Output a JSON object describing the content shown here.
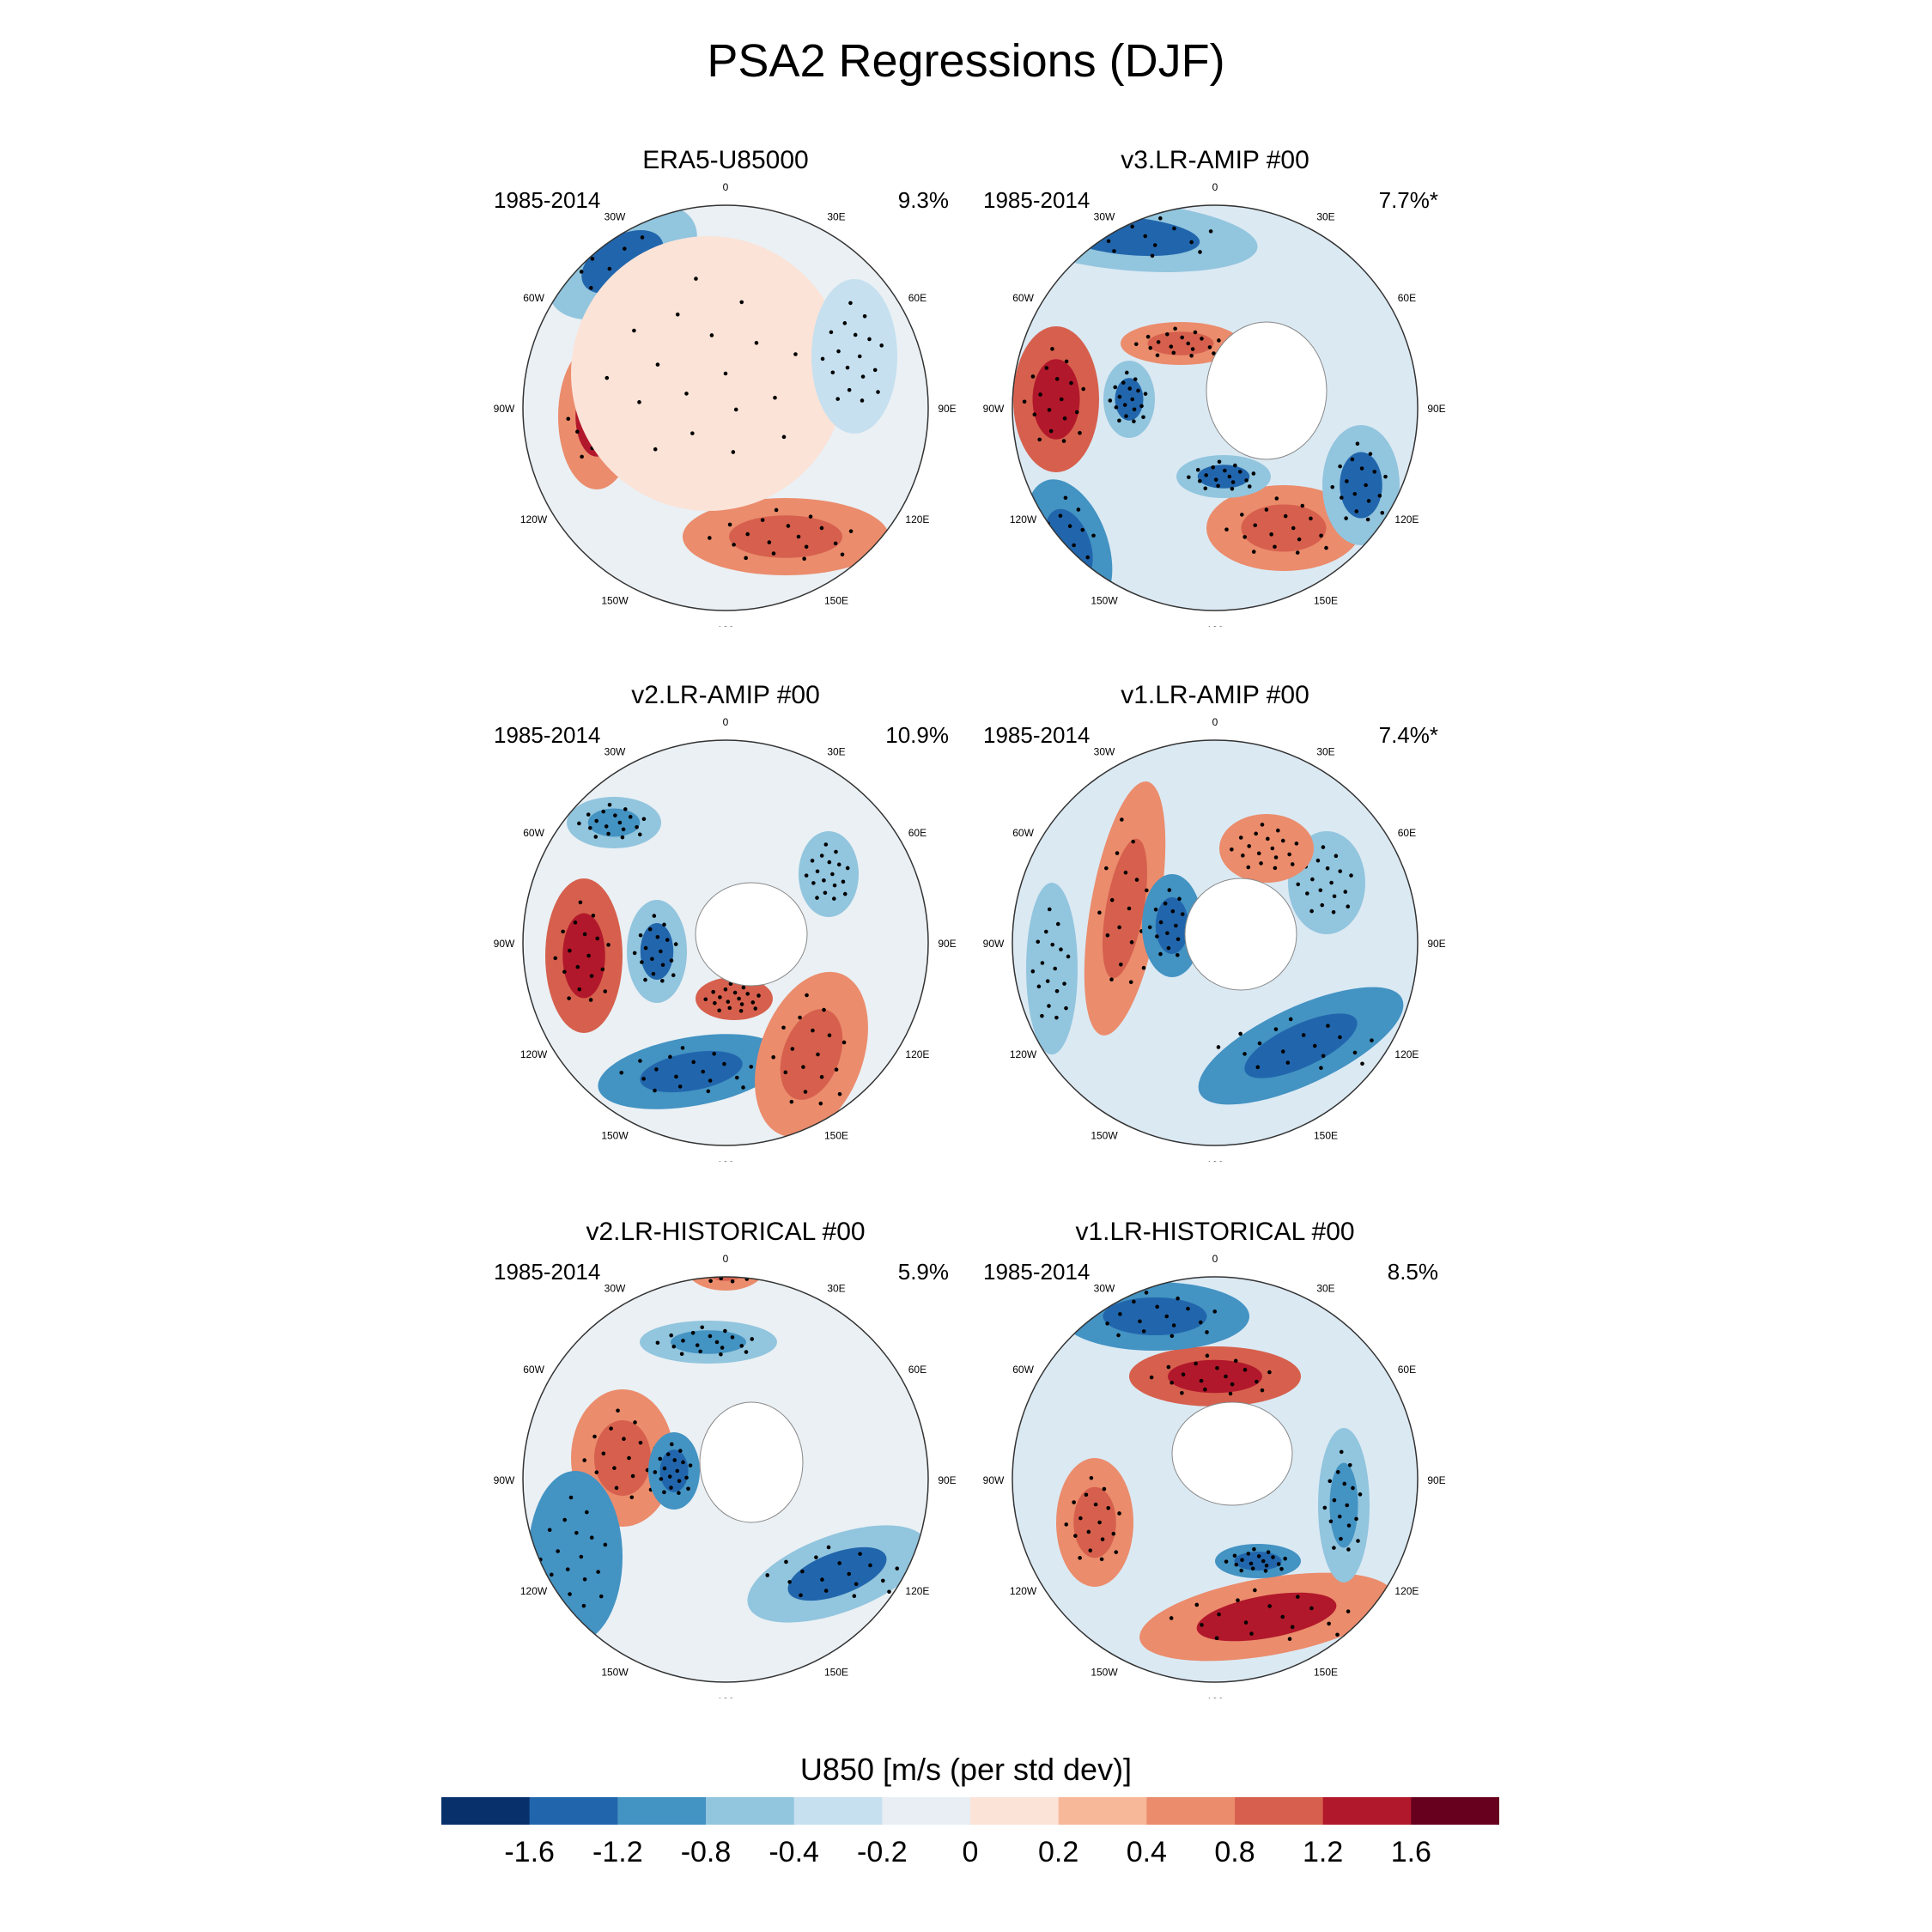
{
  "title": "PSA2 Regressions (DJF)",
  "panels": [
    {
      "name": "ERA5-U85000",
      "period": "1985-2014",
      "percent": "9.3%"
    },
    {
      "name": "v3.LR-AMIP  #00",
      "period": "1985-2014",
      "percent": "7.7%*"
    },
    {
      "name": "v2.LR-AMIP  #00",
      "period": "1985-2014",
      "percent": "10.9%"
    },
    {
      "name": "v1.LR-AMIP  #00",
      "period": "1985-2014",
      "percent": "7.4%*"
    },
    {
      "name": "v2.LR-HISTORICAL  #00",
      "period": "1985-2014",
      "percent": "5.9%"
    },
    {
      "name": "v1.LR-HISTORICAL  #00",
      "period": "1985-2014",
      "percent": "8.5%"
    }
  ],
  "longitude_labels": [
    "0",
    "30E",
    "60E",
    "90E",
    "120E",
    "150E",
    "180",
    "150W",
    "120W",
    "90W",
    "60W",
    "30W"
  ],
  "colorbar": {
    "title": "U850 [m/s (per std dev)]",
    "labels": [
      "-1.6",
      "-1.2",
      "-0.8",
      "-0.4",
      "-0.2",
      "0",
      "0.2",
      "0.4",
      "0.8",
      "1.2",
      "1.6"
    ],
    "colors": [
      "#08306b",
      "#2166ac",
      "#4393c3",
      "#92c5de",
      "#c6e0ef",
      "#e8eef4",
      "#fbe3d8",
      "#f7b89a",
      "#eb8c6c",
      "#d6604d",
      "#b2182b",
      "#67001f"
    ]
  }
}
